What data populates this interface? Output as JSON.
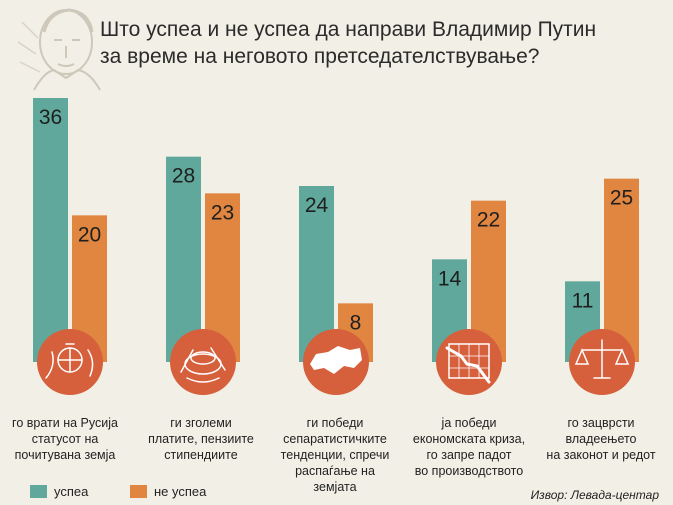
{
  "title_lines": [
    "Што успеа и не успеа да направи Владимир Путин",
    "за време на неговото претседателствување?"
  ],
  "source": "Извор: Левада-центар",
  "colors": {
    "success": "#5fa89b",
    "fail": "#e08640",
    "circle": "#d65f3c",
    "background": "#f2efe6"
  },
  "chart_data": {
    "type": "bar",
    "categories": [
      "го врати на Русија статусот на почитувана земја",
      "ги зголеми платите, пензиите стипендиите",
      "ги победи сепаратистичките тенденции, спречи распаѓање на земјата",
      "ја победи економската криза, го запре падот во производството",
      "го зацврсти владеењето на законот и редот"
    ],
    "category_lines": [
      [
        "го врати на Русија",
        "статусот на",
        "почитувана земја"
      ],
      [
        "ги зголеми",
        "платите, пензиите",
        "стипендиите"
      ],
      [
        "ги победи",
        "сепаратистичките",
        "тенденции, спречи",
        "распаѓање на",
        "земјата"
      ],
      [
        "ја победи",
        "економската криза,",
        "го запре падот",
        "во производството"
      ],
      [
        "го зацврсти",
        "владеењето",
        "на законот и редот"
      ]
    ],
    "series": [
      {
        "name": "успеа",
        "values": [
          36,
          28,
          24,
          14,
          11
        ]
      },
      {
        "name": "не успеа",
        "values": [
          20,
          23,
          8,
          22,
          25
        ]
      }
    ],
    "ylim": [
      0,
      36
    ],
    "legend_position": "bottom-left",
    "icons": [
      "crown-icon",
      "coins-icon",
      "russia-map-icon",
      "falling-graph-icon",
      "scales-icon"
    ]
  }
}
